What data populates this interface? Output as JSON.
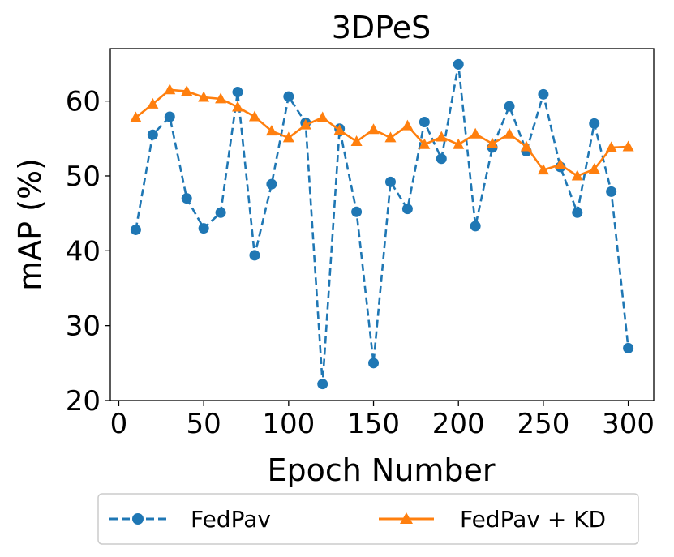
{
  "chart_data": {
    "type": "line",
    "title": "3DPeS",
    "xlabel": "Epoch Number",
    "ylabel": "mAP (%)",
    "xlim": [
      -5,
      315
    ],
    "ylim": [
      20,
      67
    ],
    "xticks": [
      0,
      50,
      100,
      150,
      200,
      250,
      300
    ],
    "yticks": [
      20,
      30,
      40,
      50,
      60
    ],
    "xtick_labels": [
      "0",
      "50",
      "100",
      "150",
      "200",
      "250",
      "300"
    ],
    "ytick_labels": [
      "20",
      "30",
      "40",
      "50",
      "60"
    ],
    "legend_position": "bottom-center, outside",
    "x": [
      10,
      20,
      30,
      40,
      50,
      60,
      70,
      80,
      90,
      100,
      110,
      120,
      130,
      140,
      150,
      160,
      170,
      180,
      190,
      200,
      210,
      220,
      230,
      240,
      250,
      260,
      270,
      280,
      290,
      300
    ],
    "series": [
      {
        "name": "FedPav",
        "color": "#1f77b4",
        "line_style": "dashed",
        "marker": "circle",
        "values": [
          42.8,
          55.5,
          57.9,
          47.0,
          43.0,
          45.1,
          61.2,
          39.4,
          48.9,
          60.6,
          57.1,
          22.2,
          56.3,
          45.2,
          25.0,
          49.2,
          45.6,
          57.2,
          52.3,
          64.9,
          43.3,
          53.8,
          59.3,
          53.3,
          60.9,
          51.2,
          45.1,
          57.0,
          47.9,
          27.0
        ]
      },
      {
        "name": "FedPav + KD",
        "color": "#ff7f0e",
        "line_style": "solid",
        "marker": "triangle",
        "values": [
          57.8,
          59.6,
          61.5,
          61.3,
          60.5,
          60.3,
          59.2,
          57.9,
          56.0,
          55.1,
          56.8,
          57.8,
          56.1,
          54.6,
          56.2,
          55.1,
          56.7,
          54.2,
          55.2,
          54.2,
          55.6,
          54.3,
          55.6,
          53.9,
          50.8,
          51.5,
          50.0,
          50.9,
          53.8,
          53.9
        ]
      }
    ]
  }
}
